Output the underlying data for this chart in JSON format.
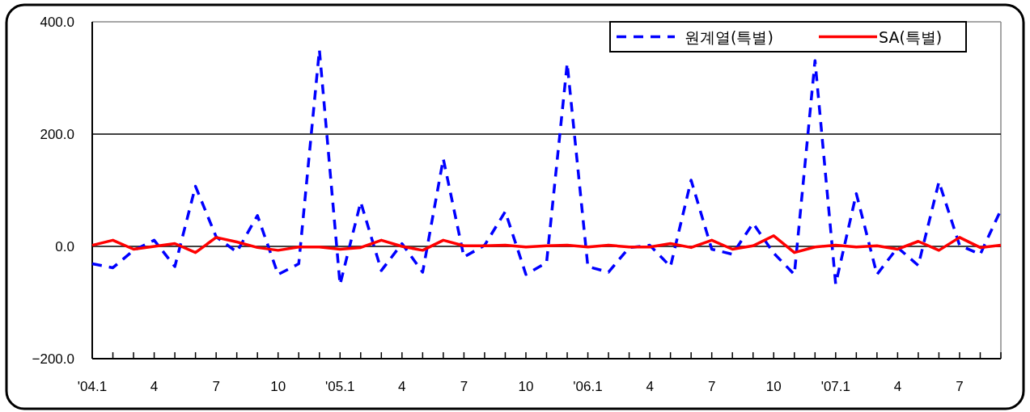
{
  "chart_data": {
    "type": "line",
    "categories": [
      "'04.1",
      null,
      null,
      "4",
      null,
      null,
      "7",
      null,
      null,
      "10",
      null,
      null,
      "'05.1",
      null,
      null,
      "4",
      null,
      null,
      "7",
      null,
      null,
      "10",
      null,
      null,
      "'06.1",
      null,
      null,
      "4",
      null,
      null,
      "7",
      null,
      null,
      "10",
      null,
      null,
      "'07.1",
      null,
      null,
      "4",
      null,
      null,
      "7",
      null,
      null
    ],
    "series": [
      {
        "name": "원계열(특별)",
        "color": "#0000ff",
        "line_style": "dashed",
        "values": [
          -31,
          -38,
          -7,
          11,
          -36,
          107,
          17,
          -10,
          55,
          -50,
          -31,
          350,
          -68,
          79,
          -43,
          5,
          -46,
          156,
          -19,
          2,
          62,
          -50,
          -29,
          326,
          -36,
          -46,
          -2,
          2,
          -36,
          118,
          -5,
          -14,
          41,
          -12,
          -50,
          331,
          -67,
          94,
          -50,
          -2,
          -34,
          115,
          2,
          -14,
          65
        ]
      },
      {
        "name": "SA(특별)",
        "color": "#ff0000",
        "line_style": "solid",
        "values": [
          2,
          11,
          -5,
          0,
          5,
          -11,
          16,
          8,
          -2,
          -7,
          -1,
          -1,
          -5,
          -2,
          11,
          0,
          -7,
          11,
          1,
          1,
          2,
          -1,
          1,
          2,
          -1,
          2,
          -1,
          -1,
          5,
          -2,
          11,
          -5,
          1,
          19,
          -11,
          -1,
          2,
          -1,
          1,
          -5,
          9,
          -7,
          16,
          -2,
          2
        ]
      }
    ],
    "ylim": [
      -200,
      400
    ],
    "yticks": [
      {
        "value": -200,
        "label": "−200.0"
      },
      {
        "value": 0,
        "label": "0.0"
      },
      {
        "value": 200,
        "label": "200.0"
      },
      {
        "value": 400,
        "label": "400.0"
      }
    ],
    "grid": "y",
    "legend": "top right",
    "marker": "none"
  }
}
